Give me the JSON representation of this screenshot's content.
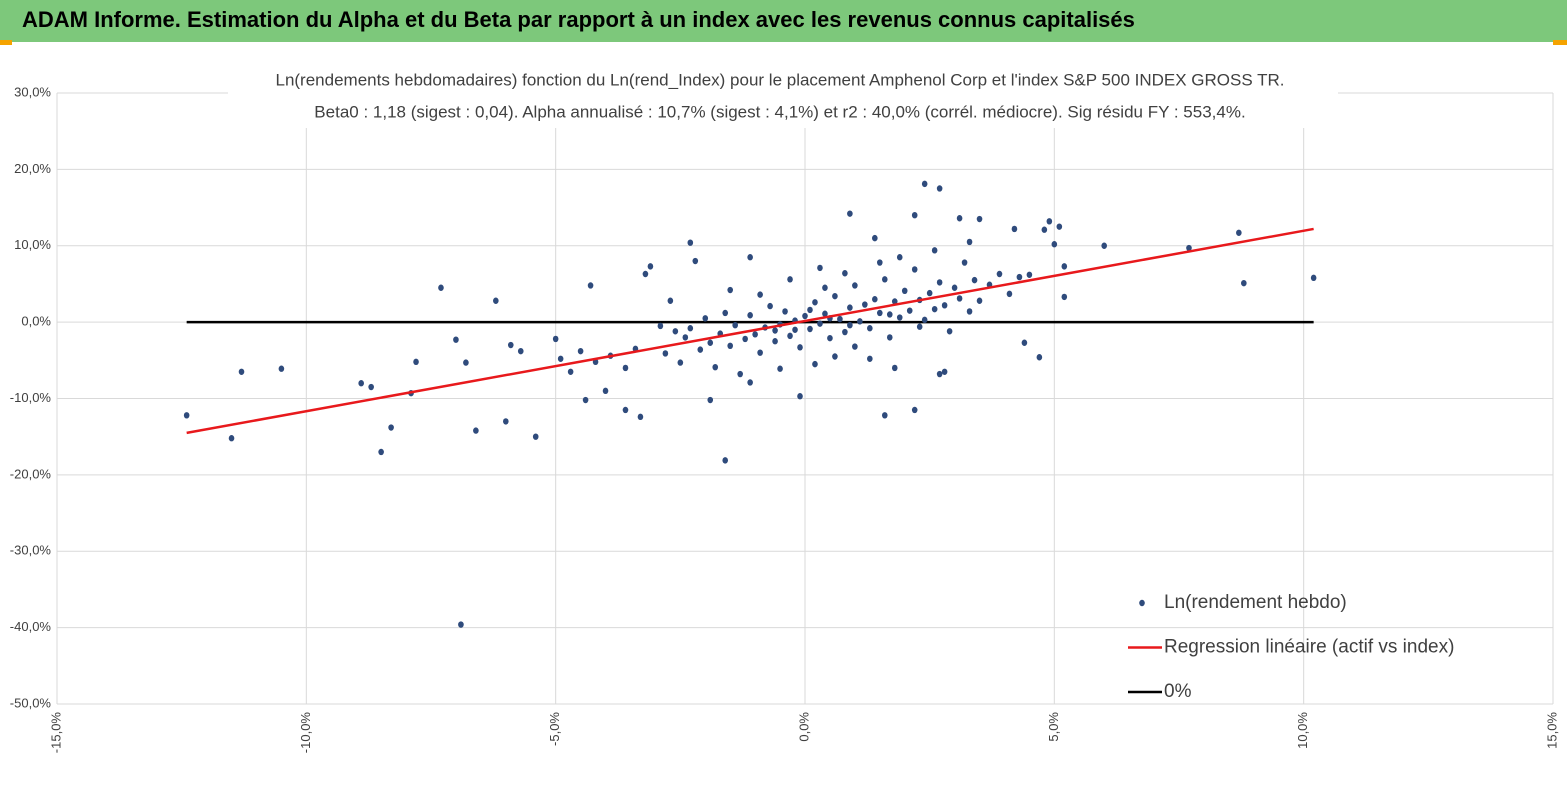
{
  "header": {
    "title": "ADAM Informe. Estimation du Alpha et du Beta par rapport à un index avec les revenus connus capitalisés"
  },
  "chart_data": {
    "type": "scatter",
    "title": "Ln(rendements hebdomadaires) fonction du Ln(rend_Index) pour le placement Amphenol Corp et l'index S&P 500 INDEX GROSS TR.",
    "subtitle": "Beta0 : 1,18  (sigest : 0,04).  Alpha annualisé : 10,7% (sigest : 4,1%) et r2 : 40,0% (corrél. médiocre). Sig résidu FY : 553,4%.",
    "xlim": [
      -15,
      15
    ],
    "xticks": [
      {
        "value": -15,
        "label": "-15,0%"
      },
      {
        "value": -10,
        "label": "-10,0%"
      },
      {
        "value": -5,
        "label": "-5,0%"
      },
      {
        "value": 0,
        "label": "0,0%"
      },
      {
        "value": 5,
        "label": "5,0%"
      },
      {
        "value": 10,
        "label": "10,0%"
      },
      {
        "value": 15,
        "label": "15,0%"
      }
    ],
    "ylim": [
      -50,
      30
    ],
    "yticks": [
      {
        "value": -50,
        "label": "-50,0%"
      },
      {
        "value": -40,
        "label": "-40,0%"
      },
      {
        "value": -30,
        "label": "-30,0%"
      },
      {
        "value": -20,
        "label": "-20,0%"
      },
      {
        "value": -10,
        "label": "-10,0%"
      },
      {
        "value": 0,
        "label": "0,0%"
      },
      {
        "value": 10,
        "label": "10,0%"
      },
      {
        "value": 20,
        "label": "20,0%"
      },
      {
        "value": 30,
        "label": "30,0%"
      }
    ],
    "grid": true,
    "legend": "lower right",
    "series": [
      {
        "name": "Ln(rendement hebdo)",
        "type": "scatter",
        "color": "#2f4b7c",
        "x": [
          -12.4,
          -11.5,
          -11.3,
          -10.5,
          -8.9,
          -8.7,
          -8.5,
          -8.3,
          -7.8,
          -7.9,
          -7.3,
          -7.0,
          -6.9,
          -6.8,
          -6.6,
          -6.2,
          -6.0,
          -5.9,
          -5.7,
          -5.4,
          -5.0,
          -4.9,
          -4.7,
          -4.4,
          -4.3,
          -4.0,
          -3.6,
          -3.3,
          -3.1,
          -3.2,
          -2.3,
          -2.2,
          -1.9,
          -1.6,
          -1.1,
          -0.1,
          0.9,
          1.4,
          1.6,
          2.4,
          2.2,
          2.7,
          2.2,
          3.1,
          3.5,
          4.2,
          4.8,
          4.9,
          5.1,
          4.7,
          4.4,
          6.0,
          7.7,
          8.7,
          8.8,
          10.2,
          5.2,
          5.2,
          1.8,
          2.7,
          2.8,
          4.5,
          5.0,
          -2.8,
          -2.6,
          -2.5,
          -2.4,
          -2.3,
          -2.1,
          -2.0,
          -1.9,
          -1.8,
          -1.7,
          -1.6,
          -1.5,
          -1.4,
          -1.3,
          -1.2,
          -1.1,
          -1.0,
          -0.9,
          -0.8,
          -0.7,
          -0.6,
          -0.5,
          -0.4,
          -0.3,
          -0.2,
          -0.1,
          0.0,
          0.1,
          0.2,
          0.3,
          0.4,
          0.5,
          0.6,
          0.7,
          0.8,
          0.9,
          1.0,
          1.1,
          1.2,
          1.3,
          1.4,
          1.5,
          1.6,
          1.7,
          1.8,
          1.9,
          2.0,
          2.1,
          2.2,
          2.3,
          2.4,
          2.5,
          2.6,
          2.7,
          2.8,
          2.9,
          3.0,
          3.1,
          3.2,
          3.3,
          3.4,
          3.5,
          3.7,
          3.9,
          4.1,
          4.3,
          -3.4,
          -3.6,
          -3.9,
          -4.2,
          -4.5,
          -2.9,
          -2.7,
          -1.5,
          -0.9,
          -0.3,
          0.3,
          0.6,
          1.0,
          1.3,
          0.2,
          -0.5,
          -1.1,
          0.8,
          1.9,
          2.6,
          3.3,
          1.5,
          0.4,
          -0.6,
          0.1,
          0.5,
          0.9,
          1.7,
          2.3,
          -0.2
        ],
        "values": [
          -12.2,
          -15.2,
          -6.5,
          -6.1,
          -8,
          -8.5,
          -17,
          -13.8,
          -5.2,
          -9.3,
          4.5,
          -2.3,
          -39.6,
          -5.3,
          -14.2,
          2.8,
          -13,
          -3,
          -3.8,
          -15,
          -2.2,
          -4.8,
          -6.5,
          -10.2,
          4.8,
          -9,
          -11.5,
          -12.4,
          7.3,
          6.3,
          10.4,
          8,
          -10.2,
          -18.1,
          8.5,
          -9.7,
          14.2,
          11,
          -12.2,
          18.1,
          -11.5,
          17.5,
          14,
          13.6,
          13.5,
          12.2,
          12.1,
          13.2,
          12.5,
          -4.6,
          -2.7,
          10,
          9.7,
          11.7,
          5.1,
          5.8,
          3.3,
          7.3,
          -6,
          -6.8,
          -6.5,
          6.2,
          10.2,
          -4.1,
          -1.2,
          -5.3,
          -2.0,
          -0.8,
          -3.6,
          0.5,
          -2.7,
          -5.9,
          -1.5,
          1.2,
          -3.1,
          -0.4,
          -6.8,
          -2.2,
          0.9,
          -1.6,
          -4.0,
          -0.7,
          2.1,
          -2.5,
          -0.3,
          1.4,
          -1.8,
          0.2,
          -3.3,
          0.8,
          -0.9,
          2.6,
          -0.2,
          1.1,
          -2.1,
          3.4,
          0.4,
          -1.3,
          1.9,
          4.8,
          0.1,
          2.3,
          -0.8,
          3.0,
          1.2,
          5.6,
          -2.0,
          2.7,
          0.6,
          4.1,
          1.5,
          6.9,
          2.9,
          0.3,
          3.8,
          1.7,
          5.2,
          2.2,
          -1.2,
          4.5,
          3.1,
          7.8,
          1.4,
          5.5,
          2.8,
          4.9,
          6.3,
          3.7,
          5.9,
          -3.5,
          -6.0,
          -4.4,
          -5.2,
          -3.8,
          -0.5,
          2.8,
          4.2,
          3.6,
          5.6,
          7.1,
          -4.5,
          -3.2,
          -4.8,
          -5.5,
          -6.1,
          -7.9,
          6.4,
          8.5,
          9.4,
          10.5,
          7.8,
          4.5,
          -1.1,
          1.6,
          0.5,
          -0.4,
          1.0,
          -0.6,
          -1.0
        ]
      },
      {
        "name": "Regression linéaire (actif vs index)",
        "type": "line",
        "color": "#e8191c",
        "x": [
          -12.4,
          10.2
        ],
        "values": [
          -14.5,
          12.2
        ]
      },
      {
        "name": "0%",
        "type": "line",
        "color": "#000000",
        "x": [
          -12.4,
          10.2
        ],
        "values": [
          0,
          0
        ]
      }
    ]
  }
}
